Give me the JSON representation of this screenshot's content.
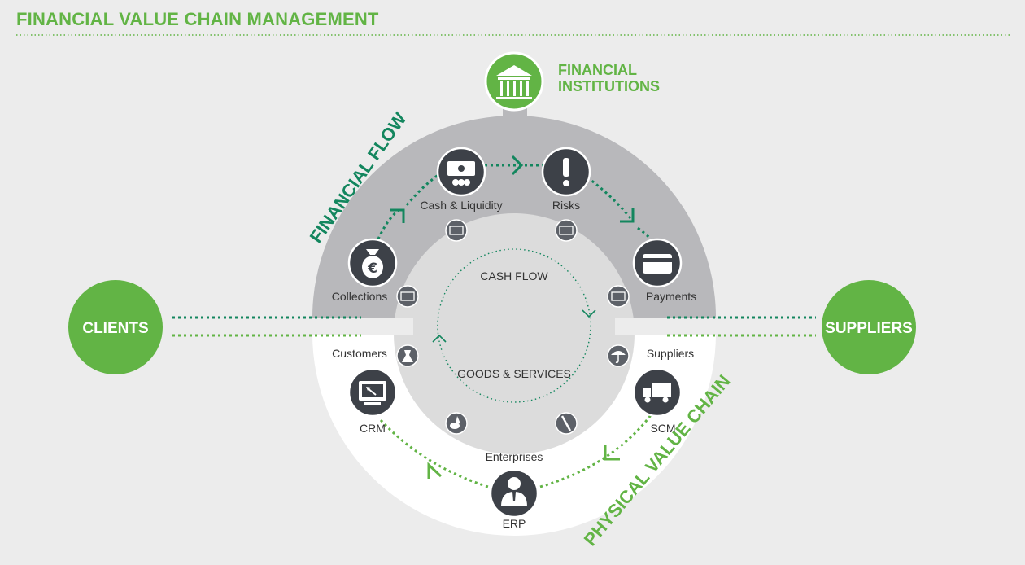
{
  "title": "FINANCIAL VALUE CHAIN MANAGEMENT",
  "colors": {
    "green": "#62b445",
    "dark_green": "#13865e",
    "dark_node": "#3d4148",
    "arc_gray": "#b8b8bb",
    "inner_gray": "#dcdcdc"
  },
  "nodes": {
    "financial_institutions": {
      "label_line1": "FINANCIAL",
      "label_line2": "INSTITUTIONS",
      "icon": "bank-icon"
    },
    "clients": {
      "label": "CLIENTS"
    },
    "suppliers": {
      "label": "SUPPLIERS"
    }
  },
  "financial_flow": {
    "label": "FINANCIAL FLOW",
    "items": [
      {
        "label": "Collections",
        "icon": "money-bag-euro-icon"
      },
      {
        "label": "Cash & Liquidity",
        "icon": "cash-coins-icon"
      },
      {
        "label": "Risks",
        "icon": "exclamation-icon"
      },
      {
        "label": "Payments",
        "icon": "credit-card-icon"
      }
    ]
  },
  "physical_chain": {
    "label": "PHYSICAL VALUE CHAIN",
    "items": [
      {
        "label": "Customers",
        "icon": "dress-icon"
      },
      {
        "label": "CRM",
        "icon": "monitor-icon"
      },
      {
        "label": "ERP",
        "icon": "businessman-icon"
      },
      {
        "label": "SCM",
        "icon": "truck-icon"
      },
      {
        "label": "Suppliers",
        "icon": "umbrella-icon"
      }
    ]
  },
  "center": {
    "cash_flow": "CASH FLOW",
    "goods_services": "GOODS & SERVICES",
    "enterprises": "Enterprises"
  }
}
